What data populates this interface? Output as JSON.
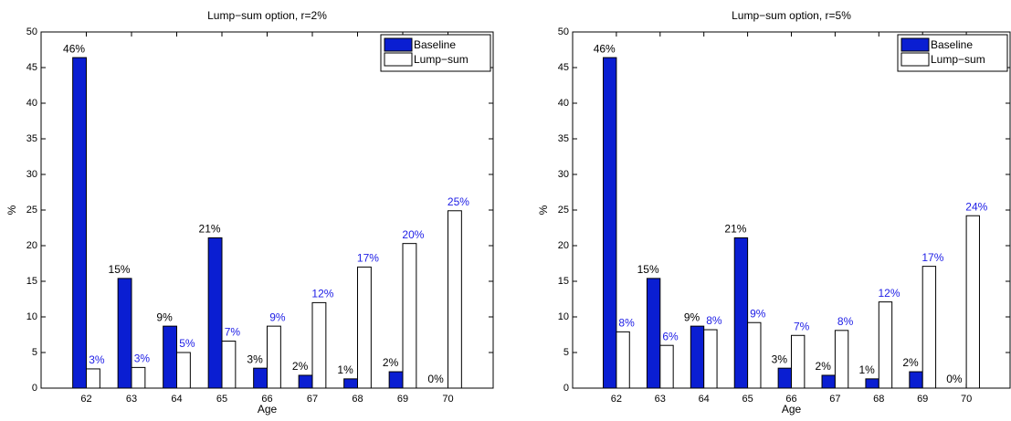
{
  "chart_data": [
    {
      "type": "bar",
      "title": "Lump−sum option, r=2%",
      "x_label": "Age",
      "y_label": "%",
      "x": [
        62,
        63,
        64,
        65,
        66,
        67,
        68,
        69,
        70
      ],
      "xlim": [
        61,
        71
      ],
      "xticks": [
        62,
        63,
        64,
        65,
        66,
        67,
        68,
        69,
        70
      ],
      "ylim": [
        0,
        50
      ],
      "yticks": [
        0,
        5,
        10,
        15,
        20,
        25,
        30,
        35,
        40,
        45,
        50
      ],
      "legend": "upper right",
      "series": [
        {
          "name": "Baseline",
          "color": "#0a1ed2",
          "label_color": "#000000",
          "values": [
            46.4,
            15.4,
            8.7,
            21.1,
            2.8,
            1.8,
            1.3,
            2.3,
            0
          ],
          "value_labels": [
            "46%",
            "15%",
            "9%",
            "21%",
            "3%",
            "2%",
            "1%",
            "2%",
            "0%"
          ]
        },
        {
          "name": "Lump−sum",
          "color": "#ffffff",
          "label_color": "#2020e6",
          "values": [
            2.7,
            2.9,
            5.0,
            6.6,
            8.7,
            12.0,
            17.0,
            20.3,
            24.9
          ],
          "value_labels": [
            "3%",
            "3%",
            "5%",
            "7%",
            "9%",
            "12%",
            "17%",
            "20%",
            "25%"
          ]
        }
      ]
    },
    {
      "type": "bar",
      "title": "Lump−sum option, r=5%",
      "x_label": "Age",
      "y_label": "%",
      "x": [
        62,
        63,
        64,
        65,
        66,
        67,
        68,
        69,
        70
      ],
      "xlim": [
        61,
        71
      ],
      "xticks": [
        62,
        63,
        64,
        65,
        66,
        67,
        68,
        69,
        70
      ],
      "ylim": [
        0,
        50
      ],
      "yticks": [
        0,
        5,
        10,
        15,
        20,
        25,
        30,
        35,
        40,
        45,
        50
      ],
      "legend": "upper right",
      "series": [
        {
          "name": "Baseline",
          "color": "#0a1ed2",
          "label_color": "#000000",
          "values": [
            46.4,
            15.4,
            8.7,
            21.1,
            2.8,
            1.8,
            1.3,
            2.3,
            0
          ],
          "value_labels": [
            "46%",
            "15%",
            "9%",
            "21%",
            "3%",
            "2%",
            "1%",
            "2%",
            "0%"
          ]
        },
        {
          "name": "Lump−sum",
          "color": "#ffffff",
          "label_color": "#2020e6",
          "values": [
            7.9,
            6.0,
            8.2,
            9.2,
            7.4,
            8.1,
            12.1,
            17.1,
            24.2
          ],
          "value_labels": [
            "8%",
            "6%",
            "8%",
            "9%",
            "7%",
            "8%",
            "12%",
            "17%",
            "24%"
          ]
        }
      ]
    }
  ]
}
